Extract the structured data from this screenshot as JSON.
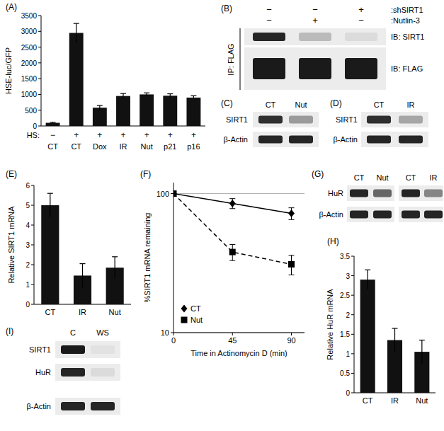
{
  "chart_data": [
    {
      "type": "bar",
      "title": "(A)",
      "y_label": "HSE-luc/GFP",
      "categories": [
        "CT",
        "CT",
        "Dox",
        "IR",
        "Nut",
        "p21",
        "p16"
      ],
      "annotations": [
        {
          "label": "HS:",
          "values": [
            "−",
            "+",
            "+",
            "+",
            "+",
            "+",
            "+"
          ]
        }
      ],
      "values": [
        100,
        2950,
        580,
        950,
        1000,
        960,
        900
      ],
      "errors": [
        15,
        300,
        70,
        80,
        50,
        60,
        60
      ],
      "color": "#111111",
      "ylim": [
        0,
        3500
      ],
      "yticks": [
        0,
        500,
        1000,
        1500,
        2000,
        2500,
        3000,
        3500
      ]
    },
    {
      "type": "bar",
      "title": "(E)",
      "y_label": "Relative SIRT1 mRNA",
      "categories": [
        "CT",
        "IR",
        "Nut"
      ],
      "values": [
        5,
        1.45,
        1.85
      ],
      "errors": [
        0.6,
        0.6,
        0.55
      ],
      "color": "#111111",
      "ylim": [
        0,
        6
      ],
      "yticks": [
        0,
        1,
        2,
        3,
        4,
        5,
        6
      ]
    },
    {
      "type": "line",
      "title": "(F)",
      "x_label": "Time in Actinomycin D (min)",
      "y_label": "%SIRT1 mRNA remaining",
      "x": [
        0,
        45,
        90
      ],
      "series": [
        {
          "name": "CT",
          "color": "#000000",
          "marker": "diamond",
          "line_style": "solid",
          "values": [
            100,
            85,
            72
          ],
          "errors": [
            0,
            7,
            7
          ]
        },
        {
          "name": "Nut",
          "color": "#000000",
          "marker": "square",
          "line_style": "dashed",
          "values": [
            100,
            38,
            31
          ],
          "errors": [
            0,
            5,
            5
          ]
        }
      ],
      "xlim": [
        0,
        100
      ],
      "xticks": [
        0,
        45,
        90
      ],
      "ylim": [
        10,
        120
      ],
      "yticks": [
        10,
        100
      ],
      "log": "y",
      "grid": true,
      "legend": "lower left"
    },
    {
      "type": "bar",
      "title": "(H)",
      "y_label": "Relative HuR mRNA",
      "categories": [
        "CT",
        "IR",
        "Nut"
      ],
      "values": [
        2.9,
        1.35,
        1.05
      ],
      "errors": [
        0.25,
        0.3,
        0.3
      ],
      "color": "#111111",
      "ylim": [
        0,
        3.5
      ],
      "yticks": [
        0,
        0.5,
        1,
        1.5,
        2,
        2.5,
        3,
        3.5
      ]
    }
  ],
  "blots": [
    {
      "title": "(B)",
      "header_rows": [
        {
          "label": ":shSIRT1",
          "values": [
            "−",
            "−",
            "+"
          ]
        },
        {
          "label": ":Nutlin-3",
          "values": [
            "−",
            "+",
            "−"
          ]
        }
      ],
      "side_label": "IP: FLAG",
      "rows": [
        {
          "label": "IB: SIRT1",
          "intensities": [
            0.9,
            0.2,
            0.05
          ]
        },
        {
          "label": "IB: FLAG",
          "intensities": [
            0.95,
            0.95,
            0.95
          ]
        }
      ]
    },
    {
      "title": "(C)",
      "lanes": [
        "CT",
        "Nut"
      ],
      "rows": [
        {
          "label": "SIRT1",
          "intensities": [
            0.85,
            0.35
          ]
        },
        {
          "label": "β-Actin",
          "intensities": [
            0.9,
            0.9
          ]
        }
      ]
    },
    {
      "title": "(D)",
      "lanes": [
        "CT",
        "IR"
      ],
      "rows": [
        {
          "label": "SIRT1",
          "intensities": [
            0.85,
            0.3
          ]
        },
        {
          "label": "β-Actin",
          "intensities": [
            0.9,
            0.9
          ]
        }
      ]
    },
    {
      "title": "(G)",
      "lanes": [
        "CT",
        "Nut",
        "CT",
        "IR"
      ],
      "rows": [
        {
          "label": "HuR",
          "intensities": [
            0.9,
            0.6,
            0.9,
            0.45
          ]
        },
        {
          "label": "β-Actin",
          "intensities": [
            0.9,
            0.9,
            0.9,
            0.9
          ]
        }
      ]
    },
    {
      "title": "(I)",
      "lanes": [
        "C",
        "WS"
      ],
      "rows": [
        {
          "label": "SIRT1",
          "intensities": [
            0.95,
            0.02
          ]
        },
        {
          "label": "HuR",
          "intensities": [
            0.9,
            0.05
          ]
        },
        {
          "label": "β-Actin",
          "intensities": [
            0.9,
            0.9
          ]
        }
      ]
    }
  ]
}
